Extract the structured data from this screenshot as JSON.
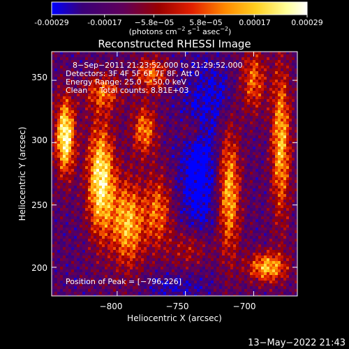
{
  "colorbar": {
    "ticks": [
      "-0.00029",
      "-0.00017",
      "−5.8e−05",
      "5.8e−05",
      "0.00017",
      "0.00029"
    ],
    "tick_values": [
      -0.00029,
      -0.00017,
      -5.8e-05,
      5.8e-05,
      0.00017,
      0.00029
    ],
    "range": [
      -0.00029,
      0.00029
    ],
    "units_main": "(photons cm",
    "units_sup1": "−2",
    "units_mid": " s",
    "units_sup2": "−1",
    "units_mid2": " asec",
    "units_sup3": "−2",
    "units_end": ")",
    "colors": [
      "#0000ff",
      "#3a0078",
      "#60005a",
      "#9a0000",
      "#e32000",
      "#ff8a00",
      "#ffcf20",
      "#ffff9a",
      "#ffffff"
    ]
  },
  "chart_data": {
    "type": "heatmap",
    "title": "Reconstructed RHESSI Image",
    "xlabel": "Heliocentric X (arcsec)",
    "ylabel": "Heliocentric Y (arcsec)",
    "xlim": [
      -848,
      -668
    ],
    "ylim": [
      177,
      373
    ],
    "xticks": [
      -800,
      -750,
      -700
    ],
    "xtick_labels": [
      "−800",
      "−750",
      "−700"
    ],
    "yticks": [
      200,
      250,
      300,
      350
    ],
    "ytick_labels": [
      "200",
      "250",
      "300",
      "350"
    ],
    "peak_position": [
      -796,
      226
    ],
    "grid": false
  },
  "annotations": {
    "time": "8−Sep−2011 21:23:52.000 to 21:29:52.000",
    "detectors": "Detectors: 3F 4F 5F 6F 7F 8F, Att 0",
    "energy": "Energy Range: 25.0 − 50.0 keV",
    "clean": "Clean     Total counts: 8.81E+03",
    "peak": "Position of Peak = [−796,226]"
  },
  "footer": {
    "timestamp": "13−May−2022 21:43"
  }
}
